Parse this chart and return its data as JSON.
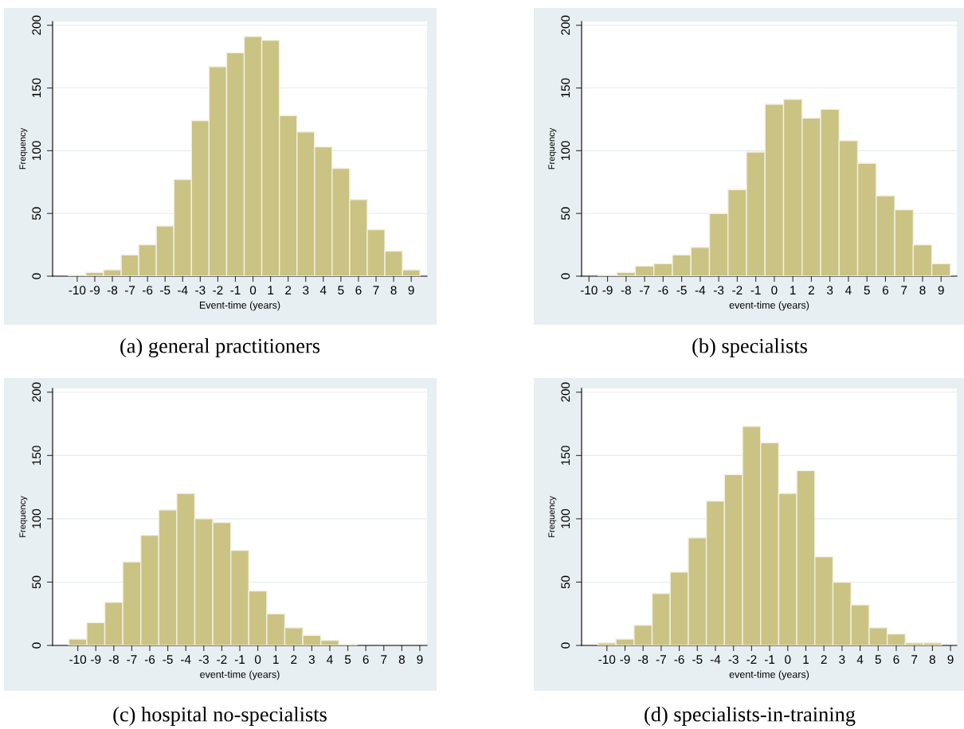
{
  "chart_data": [
    {
      "type": "histogram",
      "xlabel": "Event-time (years)",
      "ylabel": "Frequency",
      "bins": [
        -10.5,
        -9.5,
        -8.5,
        -7.5,
        -6.5,
        -5.5,
        -4.5,
        -3.5,
        -2.5,
        -1.5,
        -0.5,
        0.5,
        1.5,
        2.5,
        3.5,
        4.5,
        5.5,
        6.5,
        7.5,
        8.5,
        9.5
      ],
      "values": [
        1,
        3,
        5,
        17,
        25,
        40,
        77,
        124,
        167,
        178,
        191,
        188,
        128,
        115,
        103,
        86,
        61,
        37,
        20,
        5
      ],
      "color": "#cbc384",
      "xlim": [
        -11.4,
        9.9
      ],
      "xticks": [
        -10,
        -9,
        -8,
        -7,
        -6,
        -5,
        -4,
        -3,
        -2,
        -1,
        0,
        1,
        2,
        3,
        4,
        5,
        6,
        7,
        8,
        9
      ],
      "ylim": [
        0,
        203
      ],
      "yticks": [
        0,
        50,
        100,
        150,
        200
      ],
      "grid": "y",
      "annotations": [
        "(a) general practitioners"
      ]
    },
    {
      "type": "histogram",
      "xlabel": "event-time (years)",
      "ylabel": "Frequency",
      "bins": [
        -9.5,
        -8.5,
        -7.5,
        -6.5,
        -5.5,
        -4.5,
        -3.5,
        -2.5,
        -1.5,
        -0.5,
        0.5,
        1.5,
        2.5,
        3.5,
        4.5,
        5.5,
        6.5,
        7.5,
        8.5,
        9.5
      ],
      "values": [
        1,
        3,
        8,
        10,
        17,
        23,
        50,
        69,
        99,
        137,
        141,
        126,
        133,
        108,
        90,
        64,
        53,
        25,
        10
      ],
      "color": "#cbc384",
      "xlim": [
        -10.4,
        9.85
      ],
      "xticks": [
        -10,
        -9,
        -8,
        -7,
        -6,
        -5,
        -4,
        -3,
        -2,
        -1,
        0,
        1,
        2,
        3,
        4,
        5,
        6,
        7,
        8,
        9
      ],
      "ylim": [
        0,
        203
      ],
      "yticks": [
        0,
        50,
        100,
        150,
        200
      ],
      "grid": "y",
      "annotations": [
        "(b) specialists"
      ]
    },
    {
      "type": "histogram",
      "xlabel": "event-time (years)",
      "ylabel": "Frequency",
      "bins": [
        -10.5,
        -9.5,
        -8.5,
        -7.5,
        -6.5,
        -5.5,
        -4.5,
        -3.5,
        -2.5,
        -1.5,
        -0.5,
        0.5,
        1.5,
        2.5,
        3.5,
        4.5,
        5.5
      ],
      "values": [
        5,
        18,
        34,
        66,
        87,
        107,
        120,
        100,
        97,
        75,
        43,
        25,
        14,
        8,
        4,
        1
      ],
      "color": "#cbc384",
      "xlim": [
        -11.4,
        9.4
      ],
      "xticks": [
        -10,
        -9,
        -8,
        -7,
        -6,
        -5,
        -4,
        -3,
        -2,
        -1,
        0,
        1,
        2,
        3,
        4,
        5,
        6,
        7,
        8,
        9
      ],
      "ylim": [
        0,
        203
      ],
      "yticks": [
        0,
        50,
        100,
        150,
        200
      ],
      "grid": "y",
      "annotations": [
        "(c) hospital no-specialists"
      ]
    },
    {
      "type": "histogram",
      "xlabel": "event-time (years)",
      "ylabel": "Frequency",
      "bins": [
        -10.5,
        -9.5,
        -8.5,
        -7.5,
        -6.5,
        -5.5,
        -4.5,
        -3.5,
        -2.5,
        -1.5,
        -0.5,
        0.5,
        1.5,
        2.5,
        3.5,
        4.5,
        5.5,
        6.5,
        7.5,
        8.5
      ],
      "values": [
        2,
        5,
        16,
        41,
        58,
        85,
        114,
        135,
        173,
        160,
        120,
        138,
        70,
        50,
        32,
        14,
        9,
        2,
        2
      ],
      "color": "#cbc384",
      "xlim": [
        -11.4,
        9.35
      ],
      "xticks": [
        -10,
        -9,
        -8,
        -7,
        -6,
        -5,
        -4,
        -3,
        -2,
        -1,
        0,
        1,
        2,
        3,
        4,
        5,
        6,
        7,
        8,
        9
      ],
      "ylim": [
        0,
        203
      ],
      "yticks": [
        0,
        50,
        100,
        150,
        200
      ],
      "grid": "y",
      "annotations": [
        "(d) specialists-in-training"
      ]
    }
  ]
}
